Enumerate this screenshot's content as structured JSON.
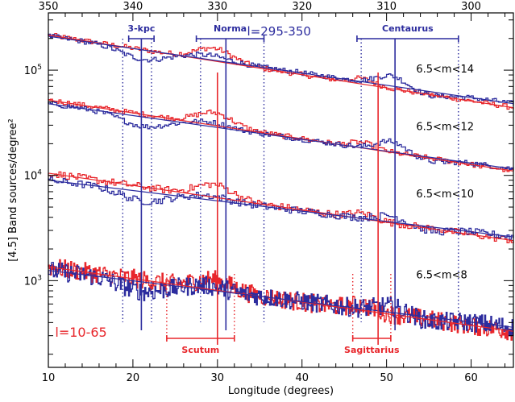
{
  "chart_data": {
    "type": "line",
    "xlabel": "Longitude (degrees)",
    "ylabel": "[4.5] Band sources/degree²",
    "xlim": [
      10,
      65
    ],
    "ylim": [
      150,
      350000
    ],
    "y_scale": "log",
    "x_ticks": [
      10,
      20,
      30,
      40,
      50,
      60
    ],
    "x_tick_labels": [
      "10",
      "20",
      "30",
      "40",
      "50",
      "60"
    ],
    "top_axis_ticks": [
      350,
      340,
      330,
      320,
      310,
      300
    ],
    "top_axis_tick_labels": [
      "350",
      "340",
      "330",
      "320",
      "310",
      "300"
    ],
    "y_ticks": [
      1000,
      10000,
      100000
    ],
    "y_tick_labels": [
      {
        "base": "10",
        "exp": "3"
      },
      {
        "base": "10",
        "exp": "4"
      },
      {
        "base": "10",
        "exp": "5"
      }
    ],
    "colors": {
      "red": "#e8262b",
      "blue": "#2c2c9e",
      "axis": "#000000"
    },
    "series": [
      {
        "name": "l=10-65",
        "color": "#e8262b",
        "label": "l=10-65"
      },
      {
        "name": "l=295-350",
        "color": "#2c2c9e",
        "label": "l=295-350"
      }
    ],
    "magnitude_bins": [
      {
        "label": "6.5<m<14",
        "x_label": 53.5,
        "y_label": 95000,
        "red_fit": [
          [
            10,
            215000
          ],
          [
            65,
            44000
          ]
        ],
        "blue_fit": [
          [
            10,
            210000
          ],
          [
            65,
            48000
          ]
        ]
      },
      {
        "label": "6.5<m<12",
        "x_label": 53.5,
        "y_label": 27000,
        "red_fit": [
          [
            10,
            52000
          ],
          [
            65,
            11000
          ]
        ],
        "blue_fit": [
          [
            10,
            48000
          ],
          [
            65,
            11500
          ]
        ]
      },
      {
        "label": "6.5<m<10",
        "x_label": 53.5,
        "y_label": 6200,
        "red_fit": [
          [
            10,
            10500
          ],
          [
            65,
            2400
          ]
        ],
        "blue_fit": [
          [
            10,
            9000
          ],
          [
            65,
            2600
          ]
        ]
      },
      {
        "label": "6.5<m<8",
        "x_label": 53.5,
        "y_label": 1050,
        "red_fit": [
          [
            10,
            1350
          ],
          [
            65,
            330
          ]
        ],
        "blue_fit": [
          [
            10,
            1250
          ],
          [
            65,
            360
          ]
        ]
      }
    ],
    "blue_regions": [
      {
        "label": "3-kpc",
        "x_from": 19.5,
        "x_to": 22.5,
        "x_center": 21,
        "x_dotted": [
          18.8,
          22.2
        ]
      },
      {
        "label": "Norma",
        "x_from": 27.5,
        "x_to": 35.5,
        "x_center": 31,
        "x_dotted": [
          28,
          35.5
        ]
      },
      {
        "label": "Centaurus",
        "x_from": 46.5,
        "x_to": 58.5,
        "x_center": 51,
        "x_dotted": [
          47,
          58.5
        ]
      }
    ],
    "red_regions": [
      {
        "label": "Scutum",
        "x_from": 24,
        "x_to": 32,
        "x_center": 30,
        "x_dotted": [
          24,
          32
        ]
      },
      {
        "label": "Sagittarius",
        "x_from": 46,
        "x_to": 50.5,
        "x_center": 49,
        "x_dotted": [
          46,
          50.5
        ]
      }
    ],
    "annotations": {
      "red_range": "l=10-65",
      "blue_range": "l=295-350"
    }
  }
}
